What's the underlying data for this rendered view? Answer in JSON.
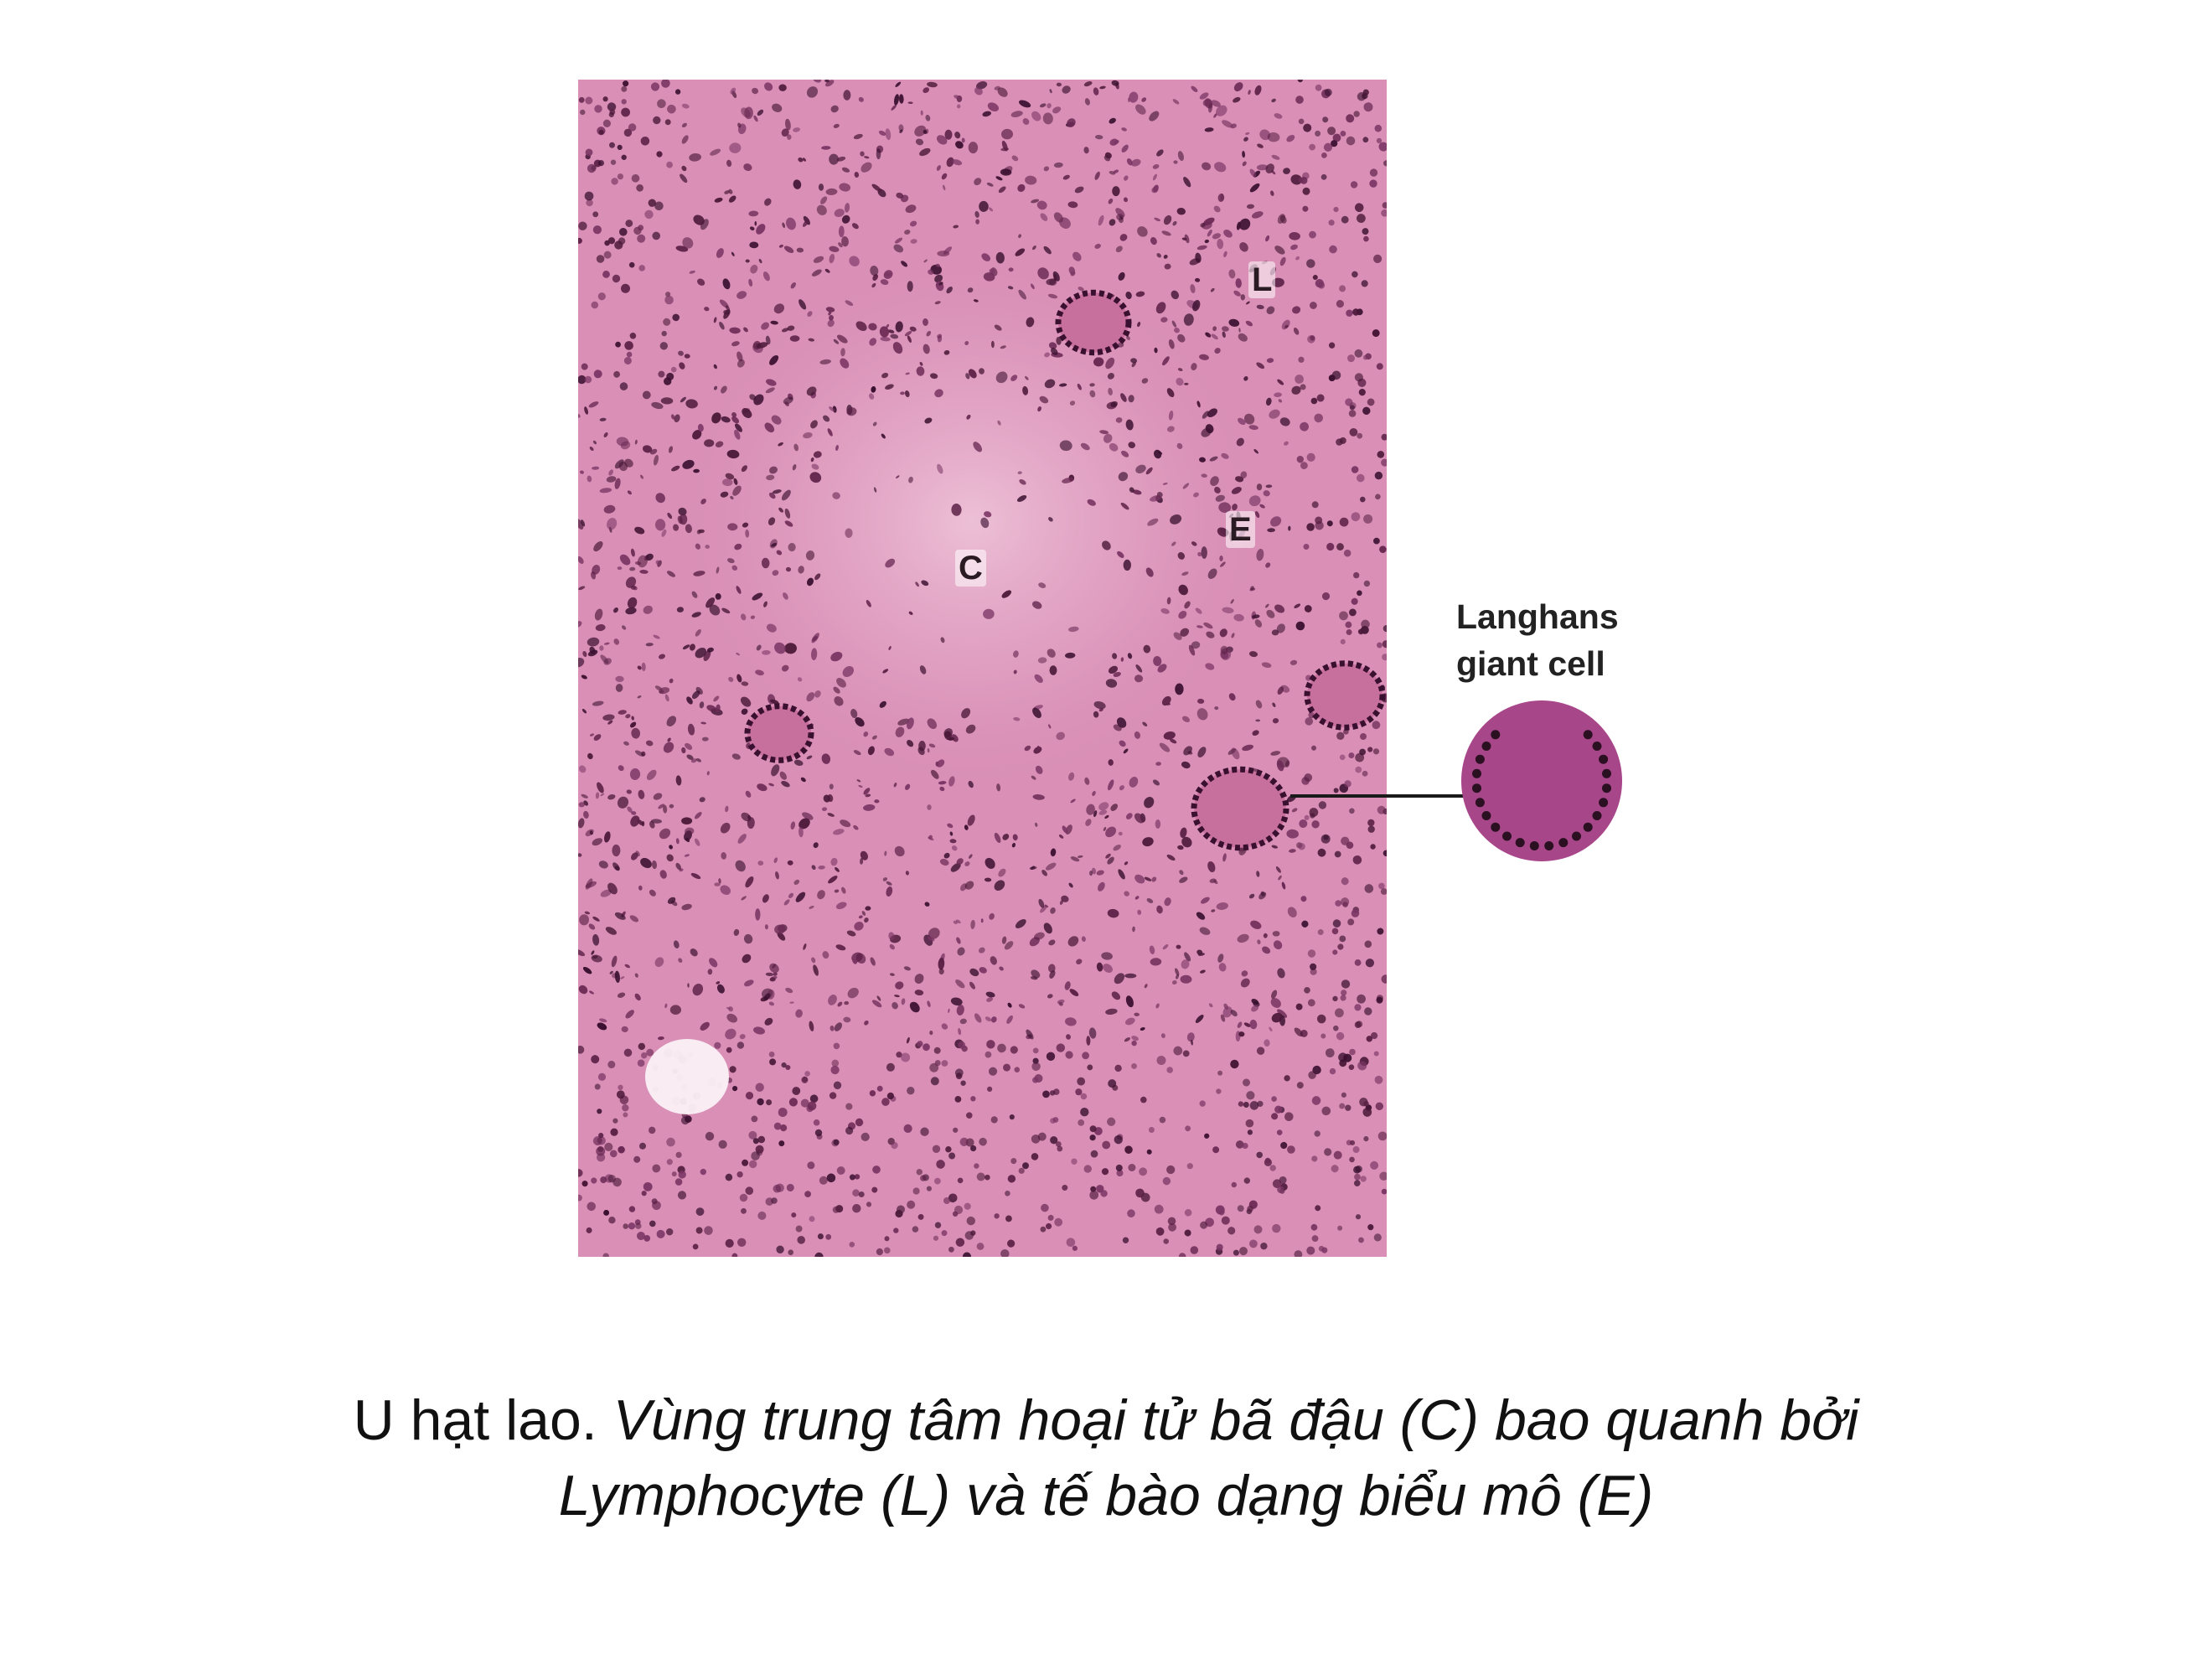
{
  "figure": {
    "labels": {
      "lymphocyte": "L",
      "epithelioid": "E",
      "caseous_center": "C"
    },
    "annotation": {
      "line1": "Langhans",
      "line2": "giant cell"
    },
    "icon": "langhans-giant-cell-diagram-icon",
    "colors": {
      "tissue_pink": "#d98fb6",
      "nucleus_purple": "#4a1838",
      "cell_magenta": "#a8468a",
      "cell_nucleus": "#2a1020"
    }
  },
  "caption": {
    "lead": "U hạt lao.",
    "italic_part1": "Vùng trung tâm hoại tử bã đậu (C) bao quanh bởi",
    "italic_part2": "Lymphocyte (L) và tế bào dạng biểu mô (E)"
  }
}
